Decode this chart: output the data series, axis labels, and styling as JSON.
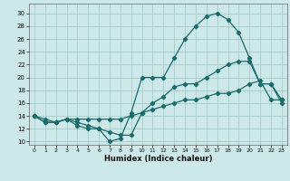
{
  "xlabel": "Humidex (Indice chaleur)",
  "bg_color": "#cce8e8",
  "line_color": "#1a6b6b",
  "grid_color": "#a8cccc",
  "xlim": [
    -0.5,
    23.5
  ],
  "ylim": [
    9.5,
    31.5
  ],
  "xticks": [
    0,
    1,
    2,
    3,
    4,
    5,
    6,
    7,
    8,
    9,
    10,
    11,
    12,
    13,
    14,
    15,
    16,
    17,
    18,
    19,
    20,
    21,
    22,
    23
  ],
  "yticks": [
    10,
    12,
    14,
    16,
    18,
    20,
    22,
    24,
    26,
    28,
    30
  ],
  "curve_top_x": [
    0,
    1,
    2,
    3,
    4,
    5,
    6,
    7,
    8,
    9,
    10,
    11,
    12,
    13,
    14,
    15,
    16,
    17,
    18,
    19,
    20,
    21,
    22,
    23
  ],
  "curve_top_y": [
    14,
    13,
    13,
    13.5,
    12.5,
    12,
    12,
    10,
    10.5,
    14.5,
    20,
    20,
    20,
    23,
    26,
    28,
    29.5,
    30,
    29,
    27,
    23,
    19,
    19,
    16
  ],
  "curve_mid_x": [
    0,
    1,
    2,
    3,
    4,
    5,
    6,
    7,
    8,
    9,
    10,
    11,
    12,
    13,
    14,
    15,
    16,
    17,
    18,
    19,
    20,
    21,
    22,
    23
  ],
  "curve_mid_y": [
    14,
    13,
    13,
    13.5,
    13,
    12.5,
    12,
    11.5,
    11,
    11,
    14.5,
    16,
    17,
    18.5,
    19,
    19,
    20,
    21,
    22,
    22.5,
    22.5,
    19,
    19,
    16.5
  ],
  "curve_bot_x": [
    0,
    1,
    2,
    3,
    4,
    5,
    6,
    7,
    8,
    9,
    10,
    11,
    12,
    13,
    14,
    15,
    16,
    17,
    18,
    19,
    20,
    21,
    22,
    23
  ],
  "curve_bot_y": [
    14,
    13.5,
    13,
    13.5,
    13.5,
    13.5,
    13.5,
    13.5,
    13.5,
    14,
    14.5,
    15,
    15.5,
    16,
    16.5,
    16.5,
    17,
    17.5,
    17.5,
    18,
    19,
    19.5,
    16.5,
    16.5
  ]
}
